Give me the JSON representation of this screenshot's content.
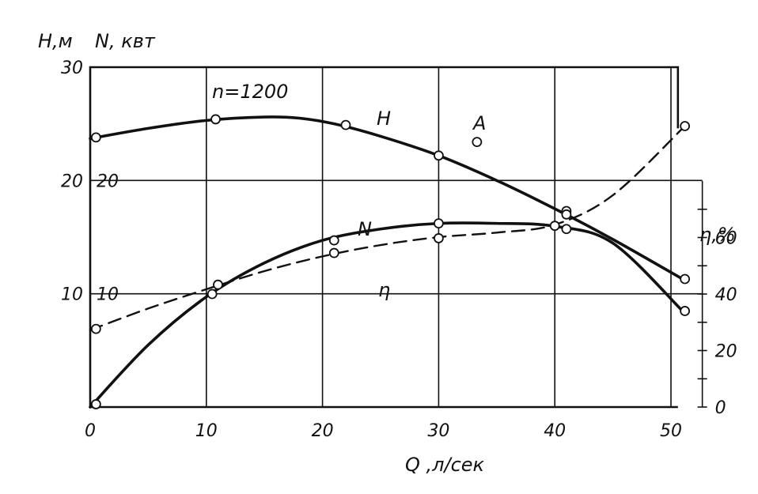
{
  "chart_data": {
    "type": "line",
    "x": {
      "label": "Q ,л/сек",
      "ticks": [
        0,
        10,
        20,
        30,
        40,
        50
      ],
      "range": [
        0,
        51
      ]
    },
    "y_left_H": {
      "label": "H,м",
      "ticks": [
        10,
        20,
        30
      ],
      "range": [
        0,
        30
      ]
    },
    "y_left_N": {
      "label": "N, квт",
      "ticks": [
        10,
        20
      ],
      "range": [
        0,
        30
      ]
    },
    "y_right_eta": {
      "label": "η,%",
      "ticks": [
        0,
        20,
        40,
        60
      ],
      "range": [
        0,
        80
      ]
    },
    "annotation": "n=1200",
    "grid": true,
    "series": [
      {
        "name": "H",
        "axis": "H",
        "style": "solid",
        "curve": [
          [
            0,
            23.7
          ],
          [
            5,
            24.6
          ],
          [
            10,
            25.3
          ],
          [
            15,
            25.6
          ],
          [
            18,
            25.5
          ],
          [
            21,
            25.0
          ],
          [
            25,
            23.9
          ],
          [
            30,
            22.2
          ],
          [
            35,
            20.0
          ],
          [
            40,
            17.5
          ],
          [
            45,
            14.8
          ],
          [
            51,
            11.3
          ]
        ],
        "points": [
          [
            0.5,
            23.8
          ],
          [
            10.8,
            25.4
          ],
          [
            22.0,
            24.9
          ],
          [
            30.0,
            22.2
          ],
          [
            41.0,
            17.3
          ],
          [
            51.2,
            11.3
          ]
        ]
      },
      {
        "name": "N",
        "axis": "N",
        "style": "dashed",
        "curve": [
          [
            0,
            6.8
          ],
          [
            5,
            8.7
          ],
          [
            10,
            10.4
          ],
          [
            15,
            12.0
          ],
          [
            20,
            13.3
          ],
          [
            25,
            14.3
          ],
          [
            30,
            15.0
          ],
          [
            35,
            15.4
          ],
          [
            40,
            16.1
          ],
          [
            45,
            18.7
          ],
          [
            51,
            24.6
          ]
        ],
        "points": [
          [
            0.5,
            6.9
          ],
          [
            11.0,
            10.8
          ],
          [
            21.0,
            13.6
          ],
          [
            30.0,
            14.9
          ],
          [
            40.0,
            16.0
          ],
          [
            41.0,
            17.0
          ],
          [
            51.2,
            24.8
          ]
        ]
      },
      {
        "name": "η",
        "axis": "eta",
        "style": "solid",
        "curve": [
          [
            0,
            0
          ],
          [
            5,
            22
          ],
          [
            10,
            39
          ],
          [
            15,
            51
          ],
          [
            20,
            59
          ],
          [
            25,
            63
          ],
          [
            30,
            65
          ],
          [
            35,
            65
          ],
          [
            40,
            64
          ],
          [
            45,
            58
          ],
          [
            51,
            34
          ]
        ],
        "points": [
          [
            0.5,
            1.0
          ],
          [
            10.5,
            40
          ],
          [
            21.0,
            59
          ],
          [
            30.0,
            65
          ],
          [
            41.0,
            63
          ],
          [
            51.2,
            34
          ]
        ]
      }
    ],
    "markers": [
      {
        "name": "A",
        "point": [
          33.3,
          23.4
        ]
      }
    ],
    "colors": {
      "ink": "#111111",
      "background": "#ffffff"
    }
  }
}
